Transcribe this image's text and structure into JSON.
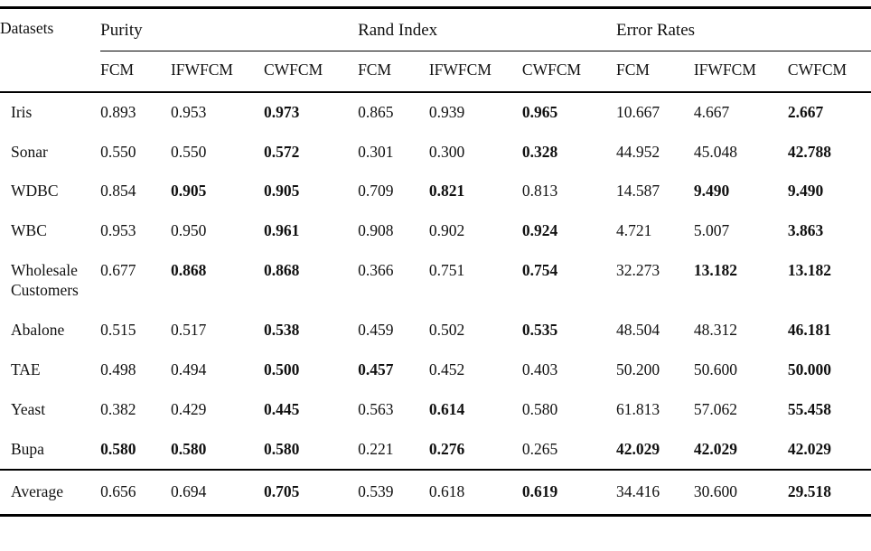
{
  "colors": {
    "background": "#ffffff",
    "text": "#111111",
    "rule": "#000000"
  },
  "table": {
    "row_header_label": "Datasets",
    "groups": [
      {
        "label": "Purity",
        "columns": [
          "FCM",
          "IFWFCM",
          "CWFCM"
        ]
      },
      {
        "label": "Rand Index",
        "columns": [
          "FCM",
          "IFWFCM",
          "CWFCM"
        ]
      },
      {
        "label": "Error Rates",
        "columns": [
          "FCM",
          "IFWFCM",
          "CWFCM"
        ]
      }
    ],
    "rows": [
      {
        "dataset": "Iris",
        "values": [
          "0.893",
          "0.953",
          "0.973",
          "0.865",
          "0.939",
          "0.965",
          "10.667",
          "4.667",
          "2.667"
        ],
        "bold": [
          false,
          false,
          true,
          false,
          false,
          true,
          false,
          false,
          true
        ]
      },
      {
        "dataset": "Sonar",
        "values": [
          "0.550",
          "0.550",
          "0.572",
          "0.301",
          "0.300",
          "0.328",
          "44.952",
          "45.048",
          "42.788"
        ],
        "bold": [
          false,
          false,
          true,
          false,
          false,
          true,
          false,
          false,
          true
        ]
      },
      {
        "dataset": "WDBC",
        "values": [
          "0.854",
          "0.905",
          "0.905",
          "0.709",
          "0.821",
          "0.813",
          "14.587",
          "9.490",
          "9.490"
        ],
        "bold": [
          false,
          true,
          true,
          false,
          true,
          false,
          false,
          true,
          true
        ]
      },
      {
        "dataset": "WBC",
        "values": [
          "0.953",
          "0.950",
          "0.961",
          "0.908",
          "0.902",
          "0.924",
          "4.721",
          "5.007",
          "3.863"
        ],
        "bold": [
          false,
          false,
          true,
          false,
          false,
          true,
          false,
          false,
          true
        ]
      },
      {
        "dataset": "Wholesale Customers",
        "values": [
          "0.677",
          "0.868",
          "0.868",
          "0.366",
          "0.751",
          "0.754",
          "32.273",
          "13.182",
          "13.182"
        ],
        "bold": [
          false,
          true,
          true,
          false,
          false,
          true,
          false,
          true,
          true
        ]
      },
      {
        "dataset": "Abalone",
        "values": [
          "0.515",
          "0.517",
          "0.538",
          "0.459",
          "0.502",
          "0.535",
          "48.504",
          "48.312",
          "46.181"
        ],
        "bold": [
          false,
          false,
          true,
          false,
          false,
          true,
          false,
          false,
          true
        ]
      },
      {
        "dataset": "TAE",
        "values": [
          "0.498",
          "0.494",
          "0.500",
          "0.457",
          "0.452",
          "0.403",
          "50.200",
          "50.600",
          "50.000"
        ],
        "bold": [
          false,
          false,
          true,
          true,
          false,
          false,
          false,
          false,
          true
        ]
      },
      {
        "dataset": "Yeast",
        "values": [
          "0.382",
          "0.429",
          "0.445",
          "0.563",
          "0.614",
          "0.580",
          "61.813",
          "57.062",
          "55.458"
        ],
        "bold": [
          false,
          false,
          true,
          false,
          true,
          false,
          false,
          false,
          true
        ]
      },
      {
        "dataset": "Bupa",
        "values": [
          "0.580",
          "0.580",
          "0.580",
          "0.221",
          "0.276",
          "0.265",
          "42.029",
          "42.029",
          "42.029"
        ],
        "bold": [
          true,
          true,
          true,
          false,
          true,
          false,
          true,
          true,
          true
        ]
      }
    ],
    "footer_row": {
      "dataset": "Average",
      "values": [
        "0.656",
        "0.694",
        "0.705",
        "0.539",
        "0.618",
        "0.619",
        "34.416",
        "30.600",
        "29.518"
      ],
      "bold": [
        false,
        false,
        true,
        false,
        false,
        true,
        false,
        false,
        true
      ]
    }
  }
}
